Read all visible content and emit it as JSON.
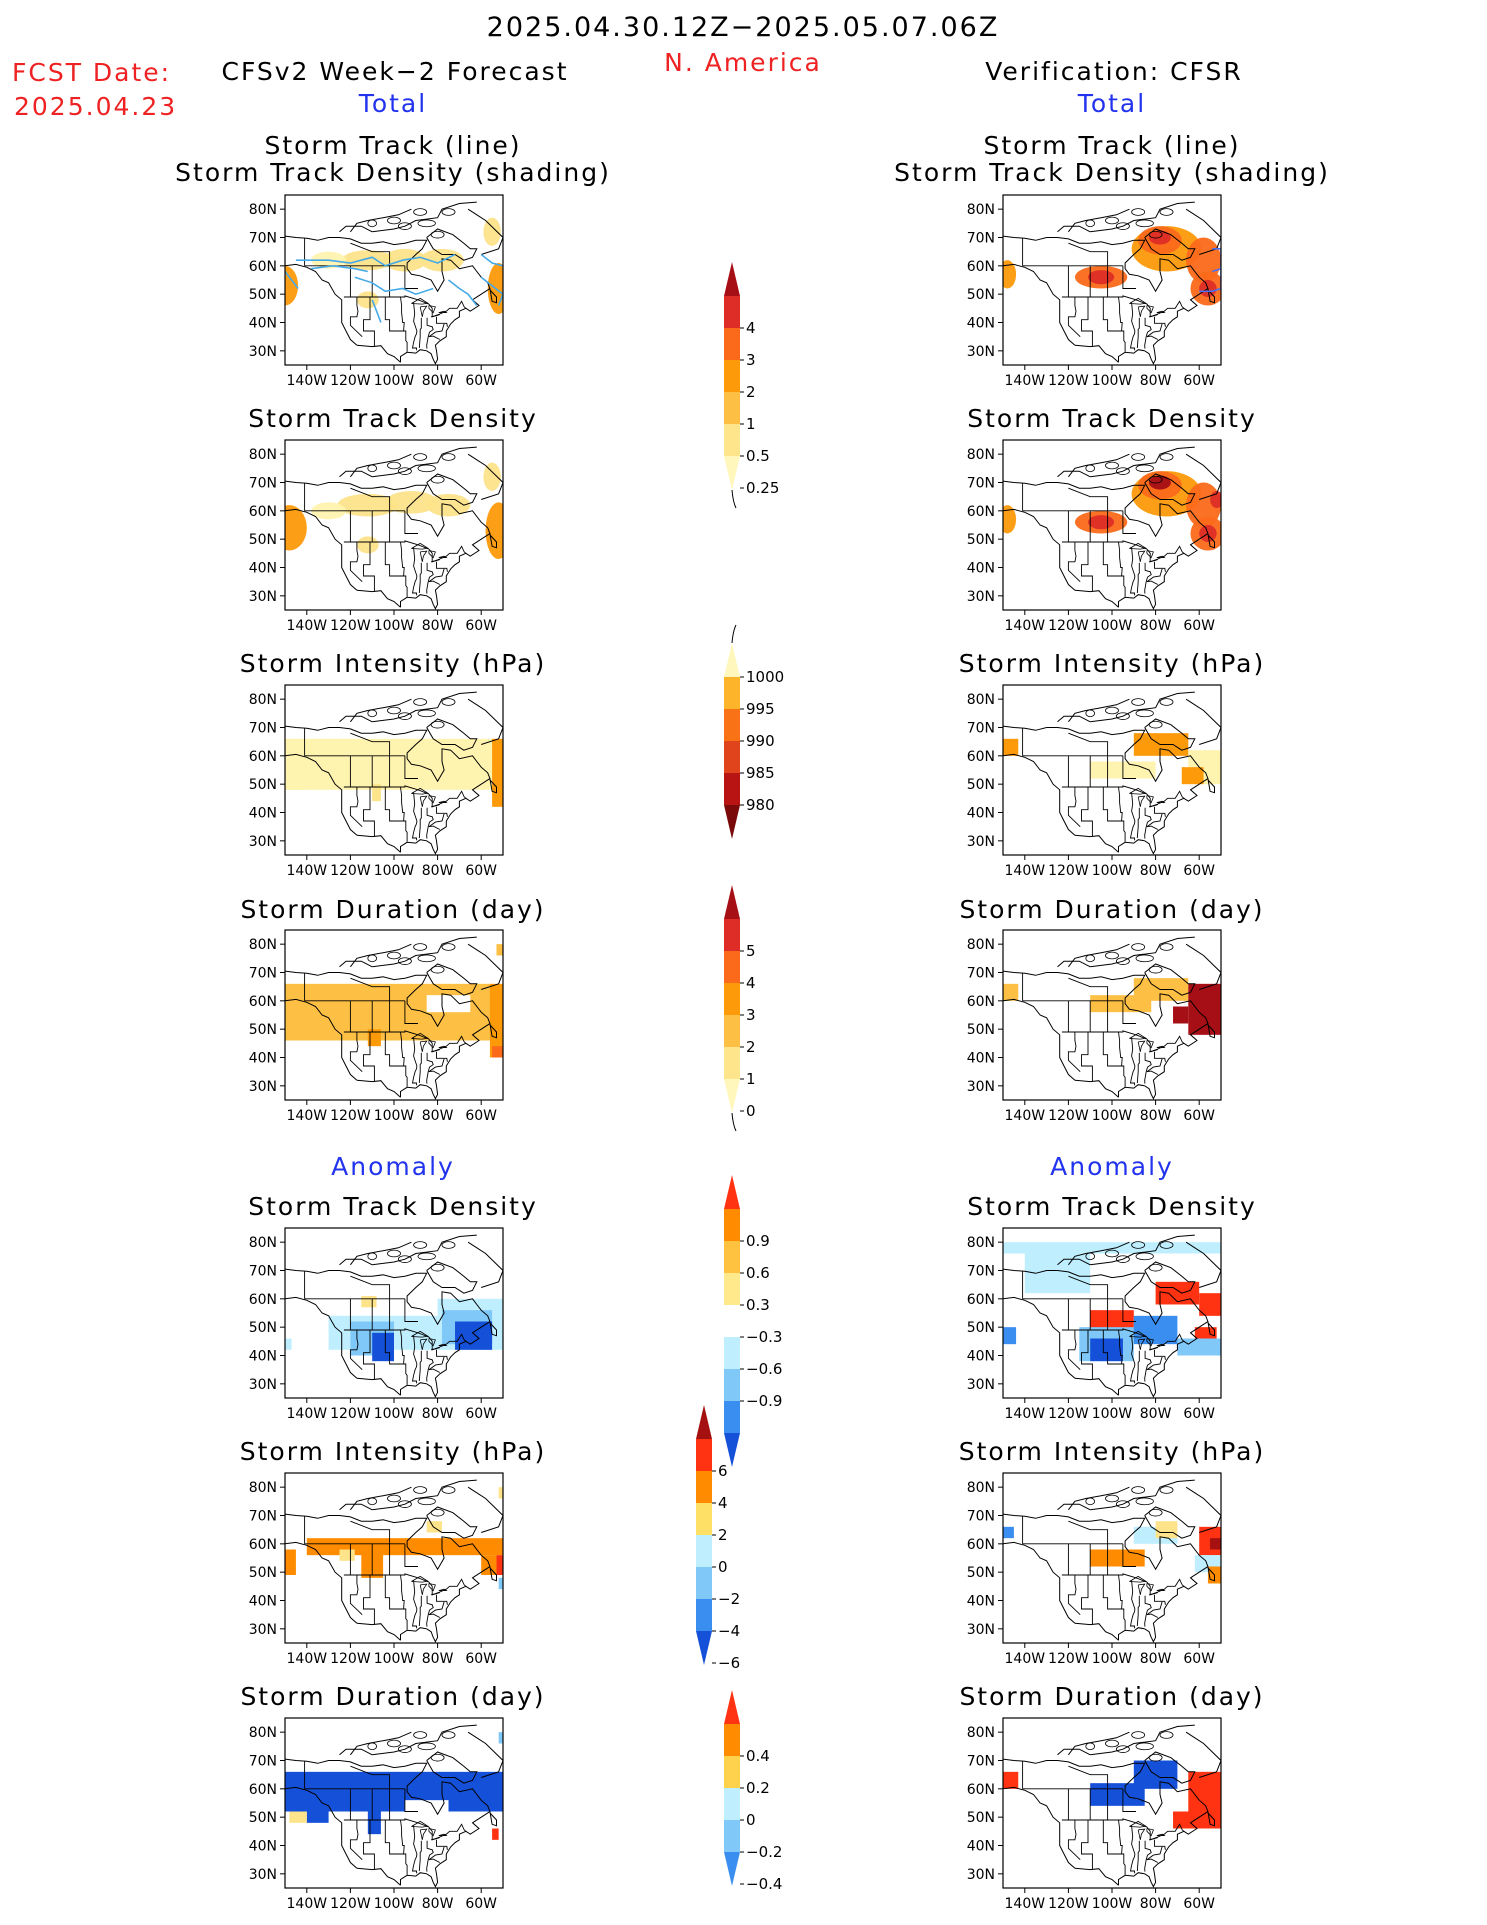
{
  "header": {
    "date_range": "2025.04.30.12Z−2025.05.07.06Z",
    "region": "N. America",
    "fcst_label": "FCST Date:",
    "fcst_date": "2025.04.23",
    "left_title": "CFSv2 Week−2 Forecast",
    "right_title": "Verification: CFSR"
  },
  "sections": {
    "total": "Total",
    "anomaly": "Anomaly"
  },
  "axes": {
    "lat_labels": [
      "80N",
      "70N",
      "60N",
      "50N",
      "40N",
      "30N"
    ],
    "lon_labels": [
      "140W",
      "120W",
      "100W",
      "80W",
      "60W"
    ]
  },
  "panels": {
    "track": {
      "title1": "Storm Track (line)",
      "title2": "Storm Track Density (shading)"
    },
    "density": {
      "title": "Storm Track Density"
    },
    "intensity": {
      "title": "Storm Intensity (hPa)"
    },
    "duration": {
      "title": "Storm Duration (day)"
    },
    "a_density": {
      "title": "Storm Track Density"
    },
    "a_intensity": {
      "title": "Storm Intensity (hPa)"
    },
    "a_duration": {
      "title": "Storm Duration (day)"
    }
  },
  "colorbars": {
    "density": {
      "labels": [
        "4",
        "3",
        "2",
        "1",
        "0.5",
        "0.25"
      ],
      "colors": [
        "#a50f15",
        "#de2d26",
        "#fb6a1a",
        "#fd9a0a",
        "#fdbf44",
        "#fee48a",
        "#fff7bc"
      ]
    },
    "intensity": {
      "labels": [
        "1000",
        "995",
        "990",
        "985",
        "980"
      ],
      "colors": [
        "#fff7bc",
        "#fdb42b",
        "#f97316",
        "#e0441c",
        "#b81414",
        "#7a0a0a"
      ]
    },
    "duration": {
      "labels": [
        "5",
        "4",
        "3",
        "2",
        "1",
        "0"
      ],
      "colors": [
        "#a50f15",
        "#de2d26",
        "#fb6a1a",
        "#fd9a0a",
        "#fdbf44",
        "#fee48a",
        "#fff7bc"
      ]
    },
    "a_density": {
      "labels": [
        "0.9",
        "0.6",
        "0.3",
        "−0.3",
        "−0.6",
        "−0.9"
      ],
      "colors": [
        "#ff3311",
        "#ff8c00",
        "#ffc240",
        "#ffe98a",
        "#ffffff",
        "#bfefff",
        "#7fc8f8",
        "#3a8ef0",
        "#1450d8"
      ]
    },
    "a_intensity": {
      "labels": [
        "6",
        "4",
        "2",
        "0",
        "−2",
        "−4",
        "−6"
      ],
      "colors": [
        "#a51010",
        "#ff3311",
        "#ff8c00",
        "#ffe066",
        "#bfefff",
        "#7fc8f8",
        "#3a8ef0",
        "#1450d8"
      ]
    },
    "a_duration": {
      "labels": [
        "0.4",
        "0.2",
        "0",
        "−0.2",
        "−0.4"
      ],
      "colors": [
        "#ff3311",
        "#ff8c00",
        "#ffd24d",
        "#bfefff",
        "#7fc8f8",
        "#3a8ef0"
      ]
    }
  },
  "colors": {
    "accent_red": "#ee2222",
    "accent_blue": "#2233ee"
  }
}
